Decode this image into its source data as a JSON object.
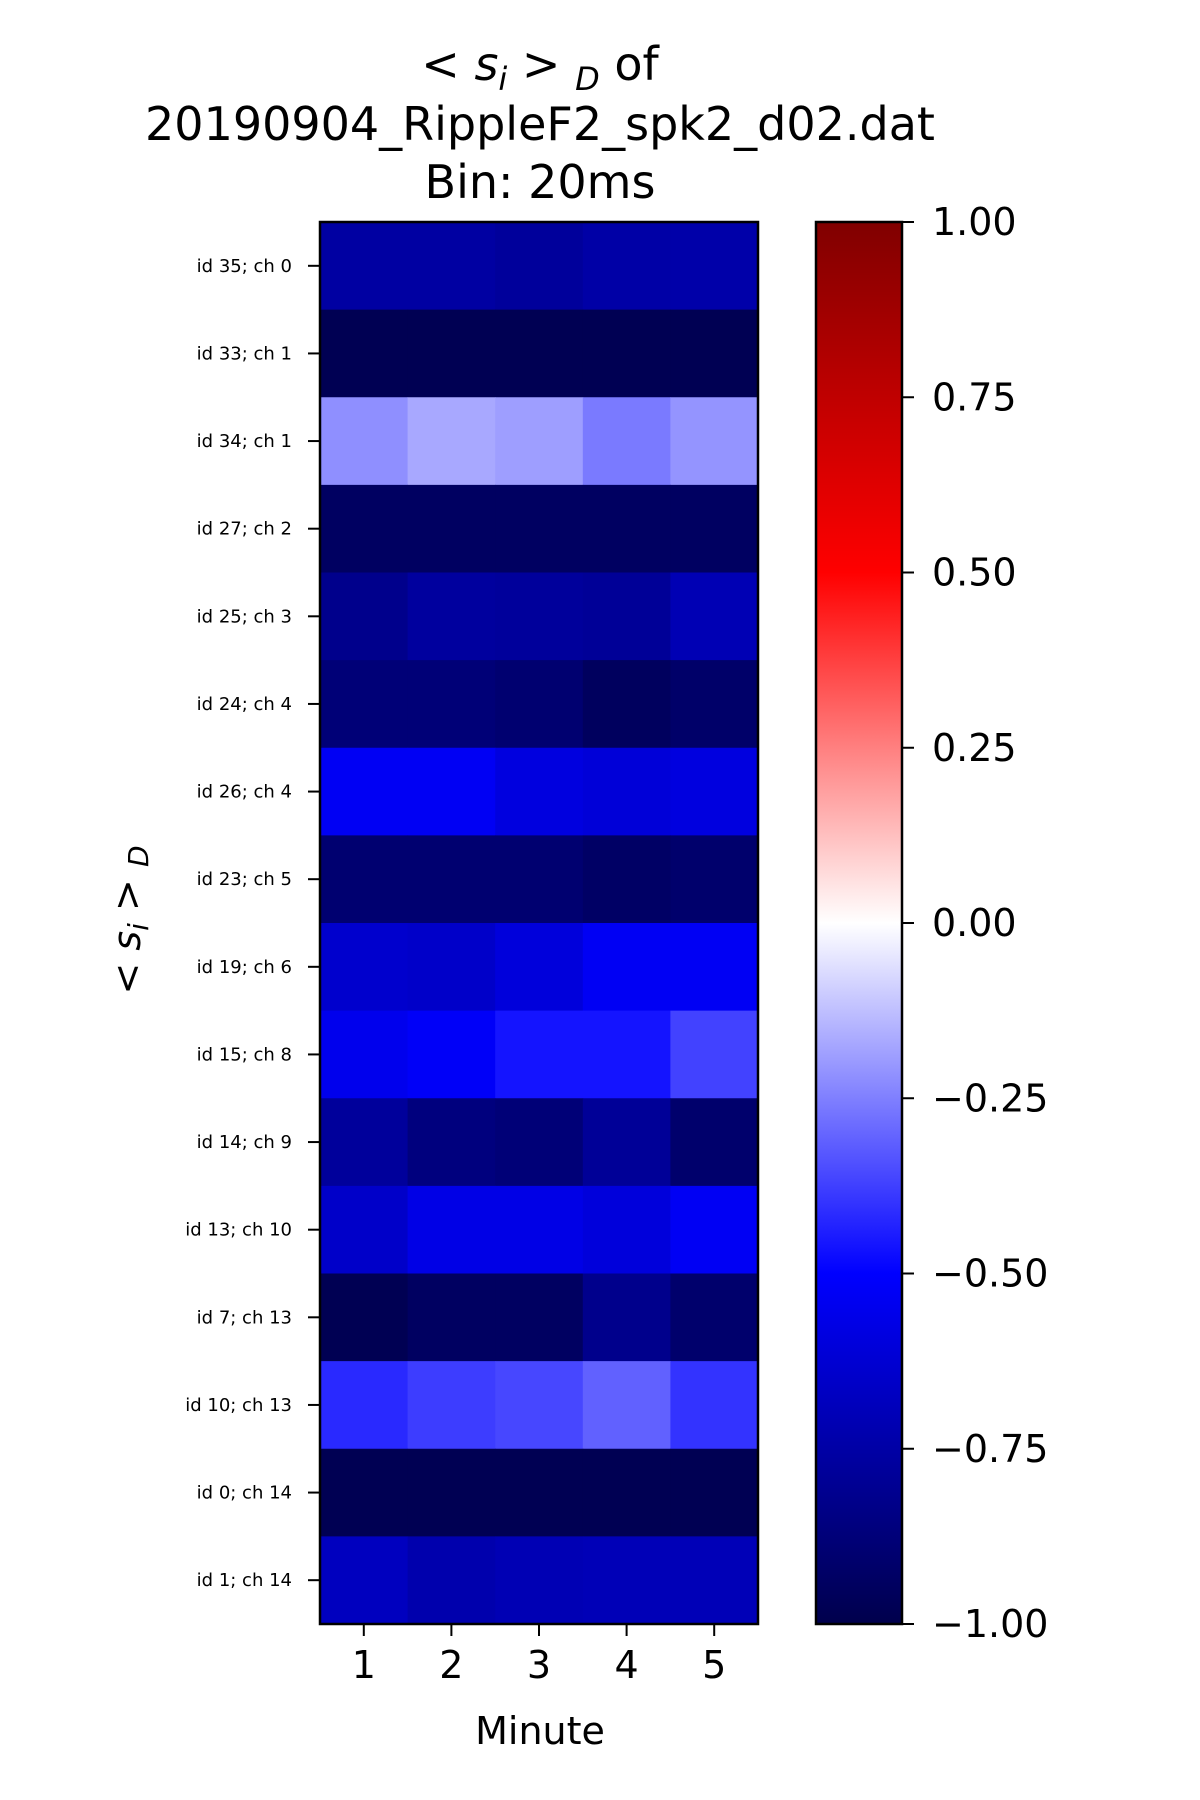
{
  "chart_data": {
    "type": "heatmap",
    "title_lines": [
      "< s",
      "i",
      " > ",
      "D",
      " of",
      "20190904_RippleF2_spk2_d02.dat",
      "Bin: 20ms"
    ],
    "title": {
      "prefix": "< s",
      "sub_i": "i",
      "mid": " > ",
      "sub_d": "D",
      "suffix": " of",
      "line2": "20190904_RippleF2_spk2_d02.dat",
      "line3": "Bin: 20ms"
    },
    "xlabel": "Minute",
    "ylabel": {
      "prefix": "< s",
      "sub_i": "i",
      "mid": " > ",
      "sub_d": "D"
    },
    "x": [
      "1",
      "2",
      "3",
      "4",
      "5"
    ],
    "rows": [
      "id 35; ch 0",
      "id 33; ch 1",
      "id 34; ch 1",
      "id 27; ch 2",
      "id 25; ch 3",
      "id 24; ch 4",
      "id 26; ch 4",
      "id 23; ch 5",
      "id 19; ch 6",
      "id 15; ch 8",
      "id 14; ch 9",
      "id 13; ch 10",
      "id 7; ch 13",
      "id 10; ch 13",
      "id 0; ch 14",
      "id 1; ch 14"
    ],
    "values": [
      [
        -0.76,
        -0.76,
        -0.78,
        -0.75,
        -0.74
      ],
      [
        -0.98,
        -0.98,
        -0.98,
        -0.98,
        -0.98
      ],
      [
        -0.22,
        -0.17,
        -0.19,
        -0.26,
        -0.21
      ],
      [
        -0.94,
        -0.94,
        -0.94,
        -0.94,
        -0.94
      ],
      [
        -0.82,
        -0.77,
        -0.78,
        -0.79,
        -0.71
      ],
      [
        -0.88,
        -0.88,
        -0.9,
        -0.95,
        -0.92
      ],
      [
        -0.53,
        -0.53,
        -0.59,
        -0.61,
        -0.59
      ],
      [
        -0.9,
        -0.9,
        -0.9,
        -0.93,
        -0.91
      ],
      [
        -0.64,
        -0.65,
        -0.6,
        -0.53,
        -0.53
      ],
      [
        -0.55,
        -0.52,
        -0.46,
        -0.46,
        -0.37
      ],
      [
        -0.78,
        -0.86,
        -0.88,
        -0.79,
        -0.91
      ],
      [
        -0.65,
        -0.57,
        -0.57,
        -0.6,
        -0.53
      ],
      [
        -0.98,
        -0.94,
        -0.94,
        -0.82,
        -0.91
      ],
      [
        -0.42,
        -0.38,
        -0.36,
        -0.31,
        -0.4
      ],
      [
        -0.98,
        -0.98,
        -0.98,
        -0.98,
        -0.98
      ],
      [
        -0.68,
        -0.73,
        -0.71,
        -0.7,
        -0.7
      ]
    ],
    "colormap": "seismic",
    "colormap_stops": [
      "#00004c",
      "#0000ff",
      "#ffffff",
      "#ff0000",
      "#800000"
    ],
    "vmin": -1.0,
    "vmax": 1.0,
    "colorbar_ticks": [
      "1.00",
      "0.75",
      "0.50",
      "0.25",
      "0.00",
      "−0.25",
      "−0.50",
      "−0.75",
      "−1.00"
    ],
    "colorbar_tick_values": [
      1.0,
      0.75,
      0.5,
      0.25,
      0.0,
      -0.25,
      -0.5,
      -0.75,
      -1.0
    ],
    "grid": false
  }
}
